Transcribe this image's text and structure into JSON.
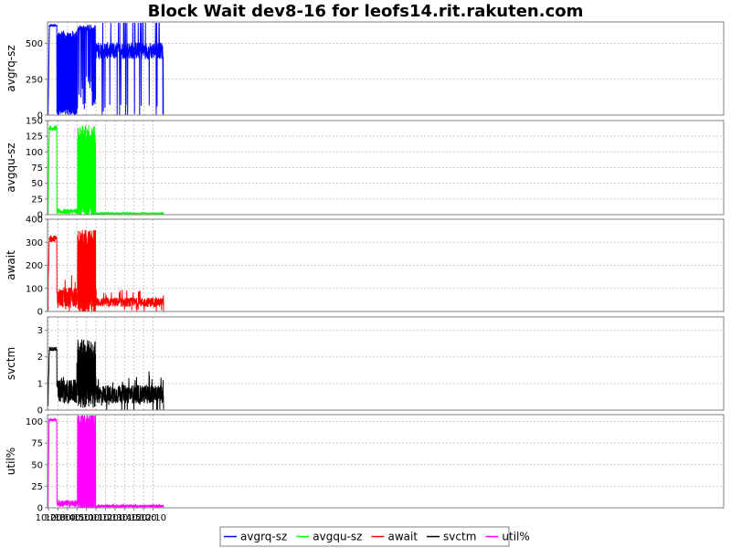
{
  "chart_data": {
    "type": "line",
    "title": "Block Wait dev8-16 for leofs14.rit.rakuten.com",
    "x_range_minutes": [
      619,
      1330
    ],
    "x_ticks": [
      {
        "label": "10:20",
        "minute": 620
      },
      {
        "label": "10:30",
        "minute": 630
      },
      {
        "label": "10:40",
        "minute": 640
      },
      {
        "label": "10:50",
        "minute": 650
      },
      {
        "label": "11:00",
        "minute": 660
      },
      {
        "label": "11:10",
        "minute": 670
      },
      {
        "label": "11:20",
        "minute": 680
      },
      {
        "label": "11:30",
        "minute": 690
      },
      {
        "label": "11:40",
        "minute": 700
      },
      {
        "label": "11:50",
        "minute": 710
      },
      {
        "label": "12:00",
        "minute": 720
      },
      {
        "label": "12:10",
        "minute": 730
      }
    ],
    "grid": true,
    "legend_placement": "bottom",
    "panels": [
      {
        "name": "avgrq-sz",
        "ylabel": "avgrq-sz",
        "color": "#0000ff",
        "ylim": [
          0,
          650
        ],
        "yticks": [
          0,
          250,
          500
        ],
        "profile": [
          {
            "start": 619.0,
            "end": 619.7,
            "pattern": "flat",
            "base": 0,
            "amp": 0
          },
          {
            "start": 619.7,
            "end": 621.0,
            "pattern": "ramp",
            "base": 30,
            "to": 620,
            "amp": 10
          },
          {
            "start": 621.0,
            "end": 628.8,
            "pattern": "flat",
            "base": 625,
            "amp": 8
          },
          {
            "start": 628.8,
            "end": 650.5,
            "pattern": "osc",
            "low": 20,
            "high": 560,
            "amp": 30
          },
          {
            "start": 650.5,
            "end": 669.5,
            "pattern": "highdips",
            "base": 600,
            "amp": 30,
            "dip": 250
          },
          {
            "start": 669.5,
            "end": 741.0,
            "pattern": "noisy",
            "base": 450,
            "amp": 60,
            "dip": 120
          }
        ]
      },
      {
        "name": "avgqu-sz",
        "ylabel": "avgqu-sz",
        "color": "#00ff00",
        "ylim": [
          0,
          150
        ],
        "yticks": [
          0,
          25,
          50,
          75,
          100,
          125,
          150
        ],
        "profile": [
          {
            "start": 619.0,
            "end": 619.7,
            "pattern": "flat",
            "base": 0,
            "amp": 0
          },
          {
            "start": 619.7,
            "end": 620.8,
            "pattern": "ramp",
            "base": 20,
            "to": 130,
            "amp": 15
          },
          {
            "start": 620.8,
            "end": 628.8,
            "pattern": "flat",
            "base": 138,
            "amp": 4
          },
          {
            "start": 628.8,
            "end": 650.5,
            "pattern": "flat",
            "base": 5,
            "amp": 4
          },
          {
            "start": 650.5,
            "end": 669.5,
            "pattern": "osc",
            "low": 2,
            "high": 130,
            "amp": 15
          },
          {
            "start": 669.5,
            "end": 741.0,
            "pattern": "flat",
            "base": 2,
            "amp": 1
          }
        ]
      },
      {
        "name": "await",
        "ylabel": "await",
        "color": "#ff0000",
        "ylim": [
          0,
          400
        ],
        "yticks": [
          0,
          100,
          200,
          300,
          400
        ],
        "profile": [
          {
            "start": 619.0,
            "end": 619.7,
            "pattern": "flat",
            "base": 0,
            "amp": 0
          },
          {
            "start": 619.7,
            "end": 620.8,
            "pattern": "ramp",
            "base": 150,
            "to": 300,
            "amp": 20
          },
          {
            "start": 620.8,
            "end": 628.8,
            "pattern": "flat",
            "base": 315,
            "amp": 15
          },
          {
            "start": 628.8,
            "end": 650.5,
            "pattern": "noisy",
            "base": 60,
            "amp": 45,
            "dip": 50
          },
          {
            "start": 650.5,
            "end": 669.5,
            "pattern": "osc",
            "low": 20,
            "high": 320,
            "amp": 35
          },
          {
            "start": 669.5,
            "end": 741.0,
            "pattern": "noisy",
            "base": 40,
            "amp": 20,
            "dip": 30
          }
        ]
      },
      {
        "name": "svctm",
        "ylabel": "svctm",
        "color": "#000000",
        "ylim": [
          0,
          3.5
        ],
        "yticks": [
          0,
          1,
          2,
          3
        ],
        "profile": [
          {
            "start": 619.0,
            "end": 619.7,
            "pattern": "flat",
            "base": 0.2,
            "amp": 0.05
          },
          {
            "start": 619.7,
            "end": 620.8,
            "pattern": "ramp",
            "base": 0.5,
            "to": 2.2,
            "amp": 0.2
          },
          {
            "start": 620.8,
            "end": 628.8,
            "pattern": "flat",
            "base": 2.3,
            "amp": 0.08
          },
          {
            "start": 628.8,
            "end": 650.5,
            "pattern": "noisy",
            "base": 0.7,
            "amp": 0.45,
            "dip": 0.3
          },
          {
            "start": 650.5,
            "end": 669.5,
            "pattern": "osc",
            "low": 0.4,
            "high": 2.3,
            "amp": 0.35
          },
          {
            "start": 669.5,
            "end": 741.0,
            "pattern": "noisy",
            "base": 0.6,
            "amp": 0.35,
            "dip": 0.2
          }
        ]
      },
      {
        "name": "util%",
        "ylabel": "util%",
        "color": "#ff00ff",
        "ylim": [
          0,
          108
        ],
        "yticks": [
          0,
          25,
          50,
          75,
          100
        ],
        "profile": [
          {
            "start": 619.0,
            "end": 619.7,
            "pattern": "flat",
            "base": 0,
            "amp": 0
          },
          {
            "start": 619.7,
            "end": 620.6,
            "pattern": "ramp",
            "base": 20,
            "to": 100,
            "amp": 10
          },
          {
            "start": 620.6,
            "end": 628.8,
            "pattern": "flat",
            "base": 102,
            "amp": 1.5
          },
          {
            "start": 628.8,
            "end": 650.5,
            "pattern": "flat",
            "base": 5,
            "amp": 4
          },
          {
            "start": 650.5,
            "end": 669.5,
            "pattern": "osc",
            "low": 1,
            "high": 100,
            "amp": 10
          },
          {
            "start": 669.5,
            "end": 741.0,
            "pattern": "flat",
            "base": 2,
            "amp": 1.5
          }
        ]
      }
    ],
    "legend": [
      {
        "label": "avgrq-sz",
        "color": "#0000ff"
      },
      {
        "label": "avgqu-sz",
        "color": "#00ff00"
      },
      {
        "label": "await",
        "color": "#ff0000"
      },
      {
        "label": "svctm",
        "color": "#000000"
      },
      {
        "label": "util%",
        "color": "#ff00ff"
      }
    ]
  }
}
